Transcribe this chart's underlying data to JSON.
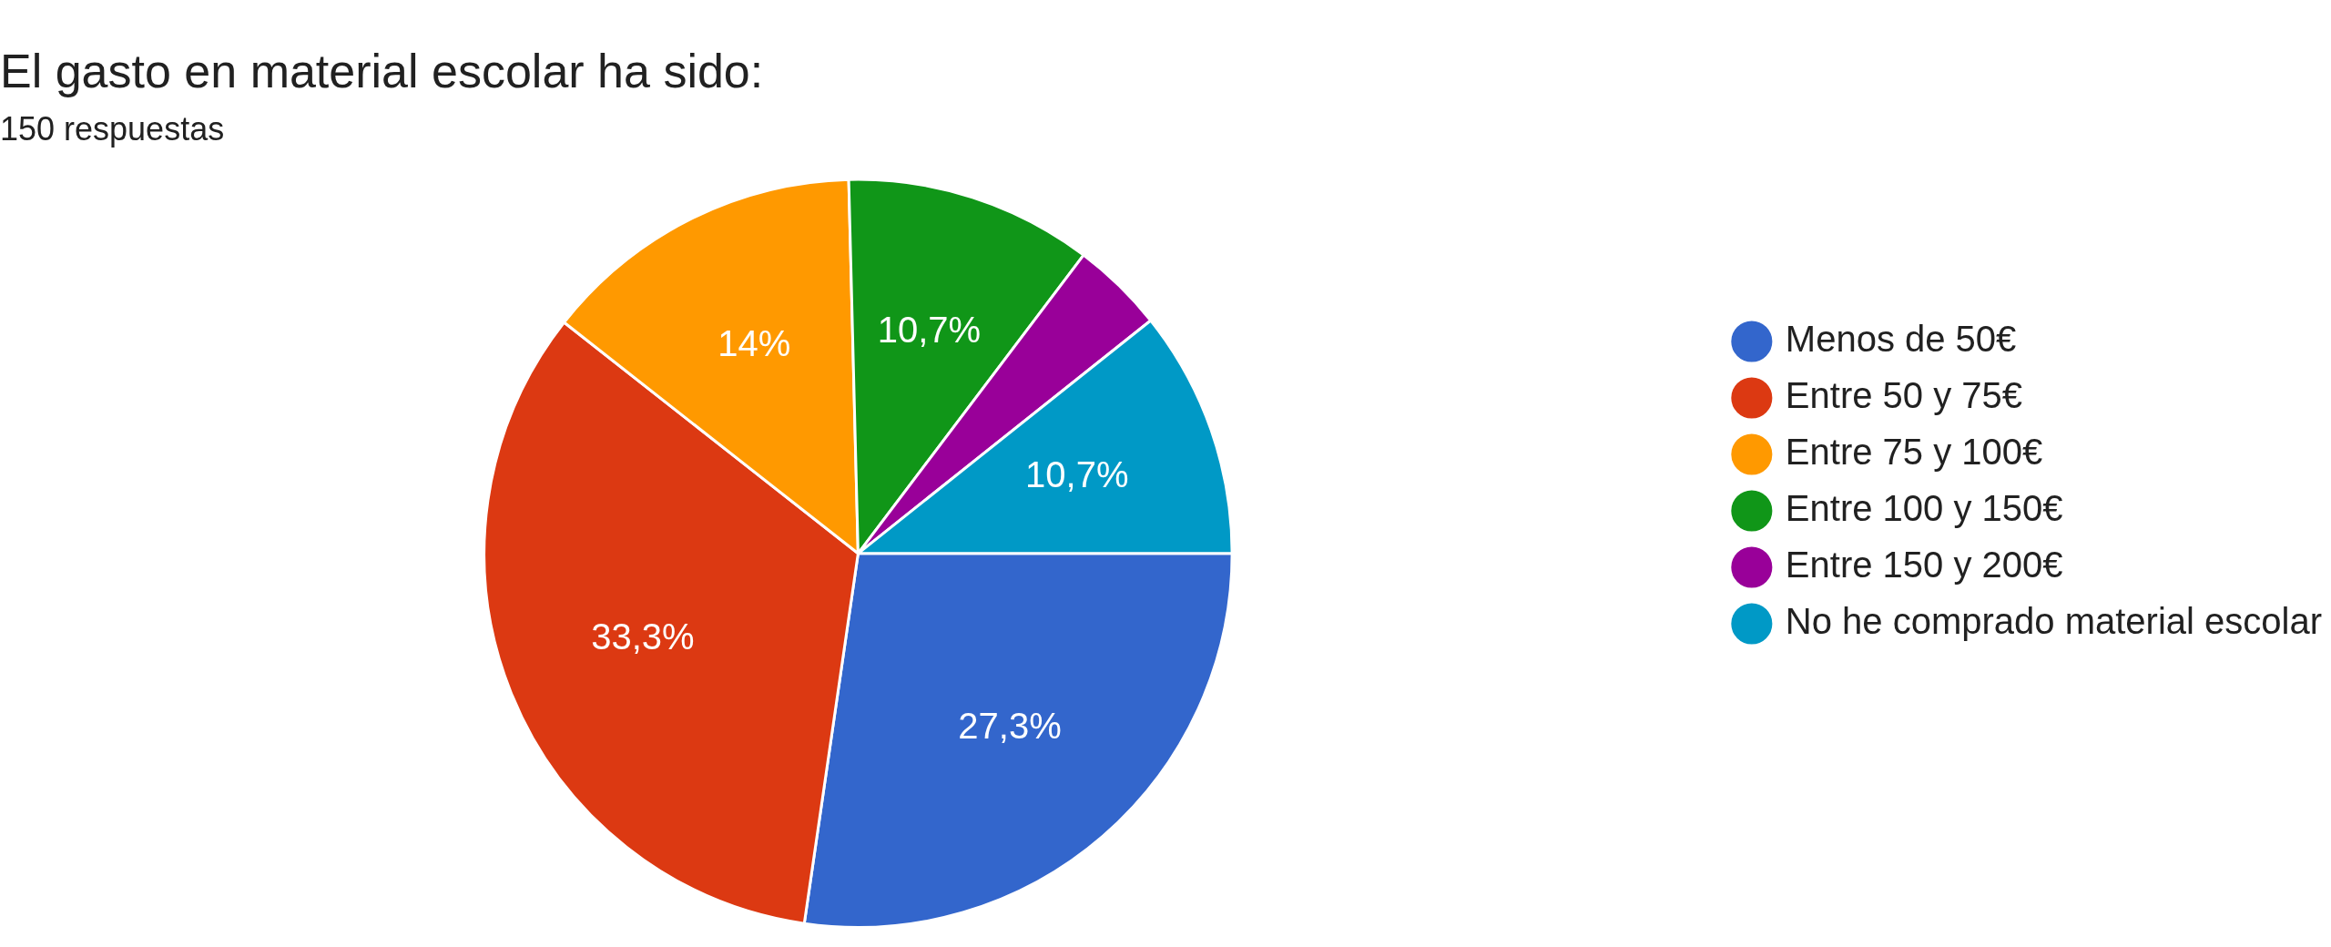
{
  "chart_data": {
    "type": "pie",
    "title": "El gasto en material escolar ha sido:",
    "subtitle": "150 respuestas",
    "categories": [
      "Menos de 50€",
      "Entre 50 y 75€",
      "Entre 75 y 100€",
      "Entre 100 y 150€",
      "Entre 150 y 200€",
      "No he comprado material escolar"
    ],
    "values": [
      27.3,
      33.3,
      14,
      10.7,
      4,
      10.7
    ],
    "colors": [
      "#3366cc",
      "#dc3912",
      "#ff9900",
      "#109618",
      "#990099",
      "#0099c6"
    ],
    "value_labels": [
      "27,3%",
      "33,3%",
      "14%",
      "10,7%",
      null,
      "10,7%"
    ],
    "legend": "right"
  }
}
